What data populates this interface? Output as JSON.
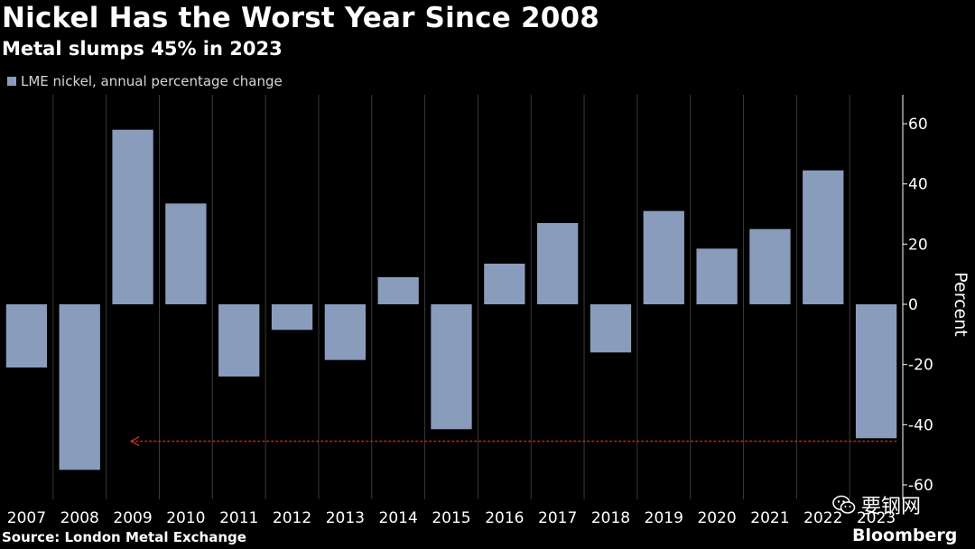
{
  "header": {
    "title": "Nickel Has the Worst Year Since 2008",
    "subtitle": "Metal slumps 45% in 2023"
  },
  "footer": {
    "source": "Source: London Metal Exchange",
    "brand": "Bloomberg",
    "watermark": "要钢网",
    "watermark_icon": "wechat-icon"
  },
  "colors": {
    "background": "#000000",
    "bar": "#8a9cbb",
    "gridline": "#3a3a3a",
    "arrow": "#c0392b"
  },
  "chart_data": {
    "type": "bar",
    "title": "Nickel Has the Worst Year Since 2008",
    "subtitle": "Metal slumps 45% in 2023",
    "xlabel": "",
    "ylabel": "Percent",
    "ylim": [
      -60,
      70
    ],
    "yticks": [
      -60,
      -40,
      -20,
      0,
      20,
      40,
      60
    ],
    "grid": "vertical gridlines between years",
    "legend_position": "top-left",
    "categories": [
      "2007",
      "2008",
      "2009",
      "2010",
      "2011",
      "2012",
      "2013",
      "2014",
      "2015",
      "2016",
      "2017",
      "2018",
      "2019",
      "2020",
      "2021",
      "2022",
      "2023"
    ],
    "series": [
      {
        "name": "LME nickel, annual percentage change",
        "values": [
          -21,
          -55,
          58,
          33.5,
          -24,
          -8.5,
          -18.5,
          9,
          -41.5,
          13.5,
          27,
          -16,
          31,
          18.5,
          25,
          44.5,
          -44.5
        ]
      }
    ],
    "annotations": [
      {
        "type": "dotted-arrow",
        "from": "2023",
        "to": "2009",
        "y": -45.5,
        "direction": "left"
      }
    ],
    "axis_position": "right"
  }
}
